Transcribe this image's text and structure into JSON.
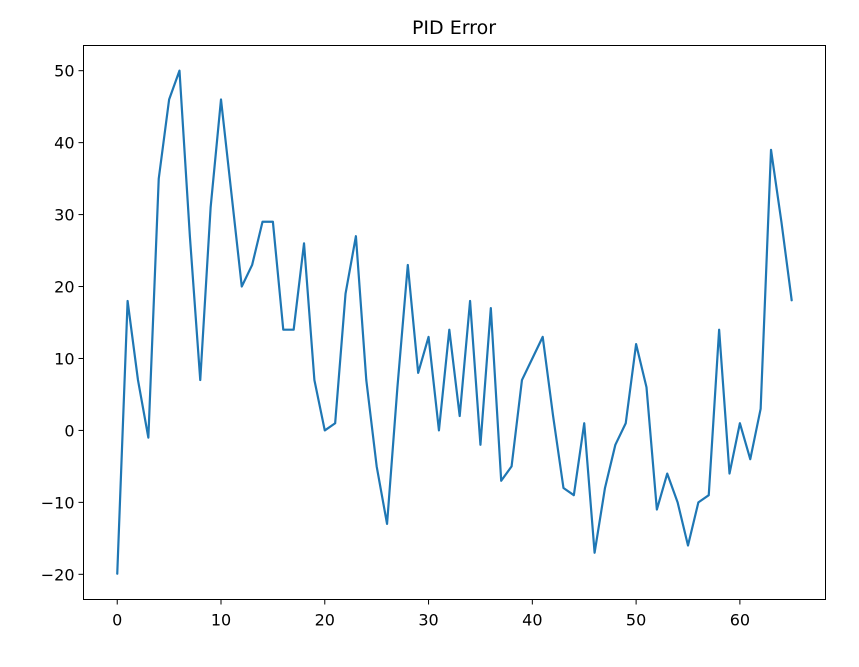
{
  "chart_data": {
    "type": "line",
    "title": "PID Error",
    "xlabel": "",
    "ylabel": "",
    "xlim": [
      -3.25,
      68.25
    ],
    "ylim": [
      -23.5,
      53.5
    ],
    "xticks": [
      0,
      10,
      20,
      30,
      40,
      50,
      60
    ],
    "yticks": [
      -20,
      -10,
      0,
      10,
      20,
      30,
      40,
      50
    ],
    "xtick_labels": [
      "0",
      "10",
      "20",
      "30",
      "40",
      "50",
      "60"
    ],
    "ytick_labels": [
      "−20",
      "−10",
      "0",
      "10",
      "20",
      "30",
      "40",
      "50"
    ],
    "grid": false,
    "line_color": "#1f77b4",
    "x": [
      0,
      1,
      2,
      3,
      4,
      5,
      6,
      7,
      8,
      9,
      10,
      11,
      12,
      13,
      14,
      15,
      16,
      17,
      18,
      19,
      20,
      21,
      22,
      23,
      24,
      25,
      26,
      27,
      28,
      29,
      30,
      31,
      32,
      33,
      34,
      35,
      36,
      37,
      38,
      39,
      40,
      41,
      42,
      43,
      44,
      45,
      46,
      47,
      48,
      49,
      50,
      51,
      52,
      53,
      54,
      55,
      56,
      57,
      58,
      59,
      60,
      61,
      62,
      63,
      64,
      65
    ],
    "y": [
      -20,
      18,
      7,
      -1,
      35,
      46,
      50,
      27,
      7,
      31,
      46,
      33,
      20,
      23,
      29,
      29,
      14,
      14,
      26,
      7,
      0,
      1,
      19,
      27,
      7,
      -5,
      -13,
      6,
      23,
      8,
      13,
      0,
      14,
      2,
      18,
      -2,
      17,
      -7,
      -5,
      7,
      10,
      13,
      2,
      -8,
      -9,
      1,
      -17,
      -8,
      -2,
      1,
      12,
      6,
      -11,
      -6,
      -10,
      -16,
      -10,
      -9,
      14,
      -6,
      1,
      -4,
      3,
      39,
      29,
      18
    ]
  }
}
